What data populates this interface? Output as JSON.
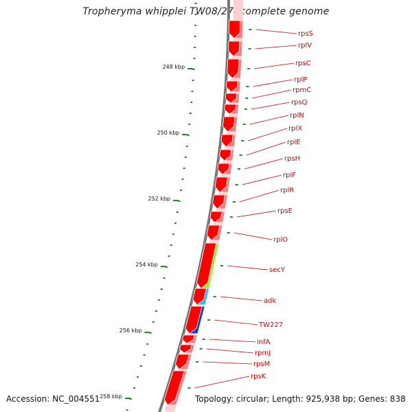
{
  "title": "Tropheryma whipplei TW08/27, complete genome",
  "accession": "Accession: NC_004551",
  "topology": "Topology: circular; Length: 925,938 bp; Genes: 838",
  "ruler": {
    "labels": [
      "248 kbp",
      "250 kbp",
      "252 kbp",
      "254 kbp",
      "256 kbp",
      "258 kbp"
    ]
  },
  "genes": [
    {
      "name": "rpsS",
      "color": "#ff0000"
    },
    {
      "name": "rplV",
      "color": "#ff0000"
    },
    {
      "name": "rpsC",
      "color": "#ff0000"
    },
    {
      "name": "rplP",
      "color": "#ff0000"
    },
    {
      "name": "rpmC",
      "color": "#ff0000"
    },
    {
      "name": "rpsQ",
      "color": "#ff0000"
    },
    {
      "name": "rplN",
      "color": "#ff0000"
    },
    {
      "name": "rplX",
      "color": "#ff0000"
    },
    {
      "name": "rplE",
      "color": "#ff0000"
    },
    {
      "name": "rpsH",
      "color": "#ff0000"
    },
    {
      "name": "rplF",
      "color": "#ff0000"
    },
    {
      "name": "rplR",
      "color": "#ff0000"
    },
    {
      "name": "rpsE",
      "color": "#ff0000"
    },
    {
      "name": "rplO",
      "color": "#ff0000"
    },
    {
      "name": "secY",
      "color": "#99ee33"
    },
    {
      "name": "adk",
      "color": "#22bbff"
    },
    {
      "name": "TW227",
      "color": "#1144cc"
    },
    {
      "name": "infA",
      "color": "#ff0000"
    },
    {
      "name": "rpmJ",
      "color": "#ff0000"
    },
    {
      "name": "rpsM",
      "color": "#ff0000"
    },
    {
      "name": "rpsK",
      "color": "#ff0000"
    }
  ],
  "colors": {
    "backbone": "#777777",
    "gene": "#ff0000",
    "function_default": "#f08080",
    "ruler_tick": "#228822",
    "label": "#cc0000"
  }
}
